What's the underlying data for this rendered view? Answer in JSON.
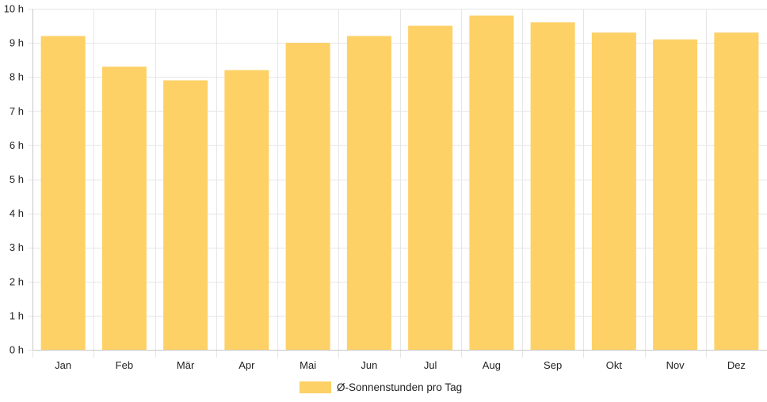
{
  "chart_data": {
    "type": "bar",
    "categories": [
      "Jan",
      "Feb",
      "Mär",
      "Apr",
      "Mai",
      "Jun",
      "Jul",
      "Aug",
      "Sep",
      "Okt",
      "Nov",
      "Dez"
    ],
    "series": [
      {
        "name": "Ø-Sonnenstunden pro Tag",
        "values": [
          9.2,
          8.3,
          7.9,
          8.2,
          9.0,
          9.2,
          9.5,
          9.8,
          9.6,
          9.3,
          9.1,
          9.3
        ]
      }
    ],
    "ylim": [
      0,
      10
    ],
    "y_ticks": [
      "0 h",
      "1 h",
      "2 h",
      "3 h",
      "4 h",
      "5 h",
      "6 h",
      "7 h",
      "8 h",
      "9 h",
      "10 h"
    ],
    "grid": true,
    "legend_position": "bottom",
    "colors": {
      "bar": "#fdd166",
      "grid": "#e6e6e6",
      "axis": "#c8c8c8",
      "text": "#222222"
    }
  }
}
